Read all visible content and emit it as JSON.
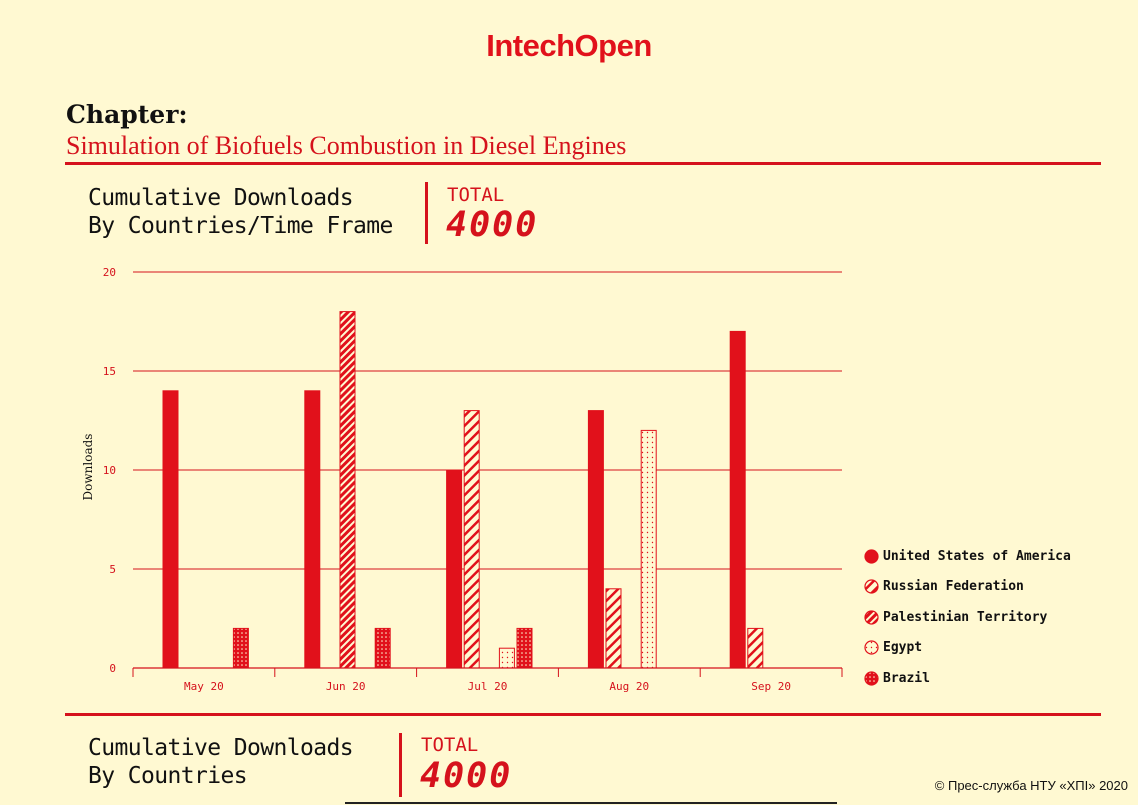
{
  "header": {
    "brand": "IntechOpen"
  },
  "chapter": {
    "label": "Chapter:",
    "title": "Simulation of Biofuels Combustion in Diesel Engines"
  },
  "section1": {
    "title": "Cumulative Downloads\nBy Countries/Time Frame",
    "total_label": "TOTAL",
    "total_value": "4000"
  },
  "section2": {
    "title": "Cumulative Downloads\nBy Countries",
    "total_label": "TOTAL",
    "total_value": "4000"
  },
  "credit": "© Прес-служба НТУ «ХПІ» 2020",
  "colors": {
    "accent": "#e1111b",
    "background": "#fff9d2"
  },
  "chart_data": {
    "type": "bar",
    "categories": [
      "May 20",
      "Jun 20",
      "Jul 20",
      "Aug 20",
      "Sep 20"
    ],
    "ylabel": "Downloads",
    "ylim": [
      0,
      20
    ],
    "yticks": [
      0,
      5,
      10,
      15,
      20
    ],
    "grid": true,
    "legend_position": "right",
    "series": [
      {
        "name": "United States of America",
        "pattern": "solid",
        "values": [
          14,
          14,
          10,
          13,
          17
        ]
      },
      {
        "name": "Russian Federation",
        "pattern": "hatch-light",
        "values": [
          0,
          0,
          13,
          4,
          2
        ]
      },
      {
        "name": "Palestinian Territory",
        "pattern": "hatch-dense",
        "values": [
          0,
          18,
          0,
          0,
          0
        ]
      },
      {
        "name": "Egypt",
        "pattern": "dots-light",
        "values": [
          0,
          0,
          1,
          12,
          0
        ]
      },
      {
        "name": "Brazil",
        "pattern": "dots-dense",
        "values": [
          2,
          2,
          2,
          0,
          0
        ]
      }
    ]
  }
}
